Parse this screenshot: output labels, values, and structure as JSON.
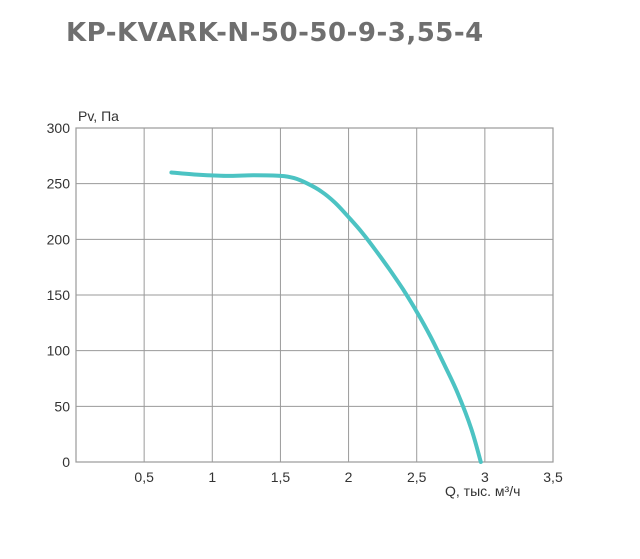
{
  "chart_data": {
    "type": "line",
    "title": "KP-KVARK-N-50-50-9-3,55-4",
    "xlabel": "Q, тыс. м³/ч",
    "ylabel": "Pv, Па",
    "xlim": [
      0,
      3.5
    ],
    "ylim": [
      0,
      300
    ],
    "grid": true,
    "x_ticks": [
      {
        "value": 0.5,
        "label": "0,5"
      },
      {
        "value": 1,
        "label": "1"
      },
      {
        "value": 1.5,
        "label": "1,5"
      },
      {
        "value": 2,
        "label": "2"
      },
      {
        "value": 2.5,
        "label": "2,5"
      },
      {
        "value": 3,
        "label": "3"
      },
      {
        "value": 3.5,
        "label": "3,5"
      }
    ],
    "y_ticks": [
      {
        "value": 0,
        "label": "0"
      },
      {
        "value": 50,
        "label": "50"
      },
      {
        "value": 100,
        "label": "100"
      },
      {
        "value": 150,
        "label": "150"
      },
      {
        "value": 200,
        "label": "200"
      },
      {
        "value": 250,
        "label": "250"
      },
      {
        "value": 300,
        "label": "300"
      }
    ],
    "series": [
      {
        "color": "#4cc3c3",
        "x": [
          0.7,
          0.9,
          1.1,
          1.3,
          1.5,
          1.6,
          1.7,
          1.8,
          1.9,
          2.0,
          2.1,
          2.2,
          2.3,
          2.4,
          2.5,
          2.6,
          2.7,
          2.8,
          2.9,
          2.97
        ],
        "y": [
          260,
          258,
          257,
          257.5,
          257,
          255,
          250,
          243,
          233,
          220,
          206,
          190,
          173,
          155,
          135,
          113,
          88,
          62,
          30,
          0
        ]
      }
    ]
  }
}
